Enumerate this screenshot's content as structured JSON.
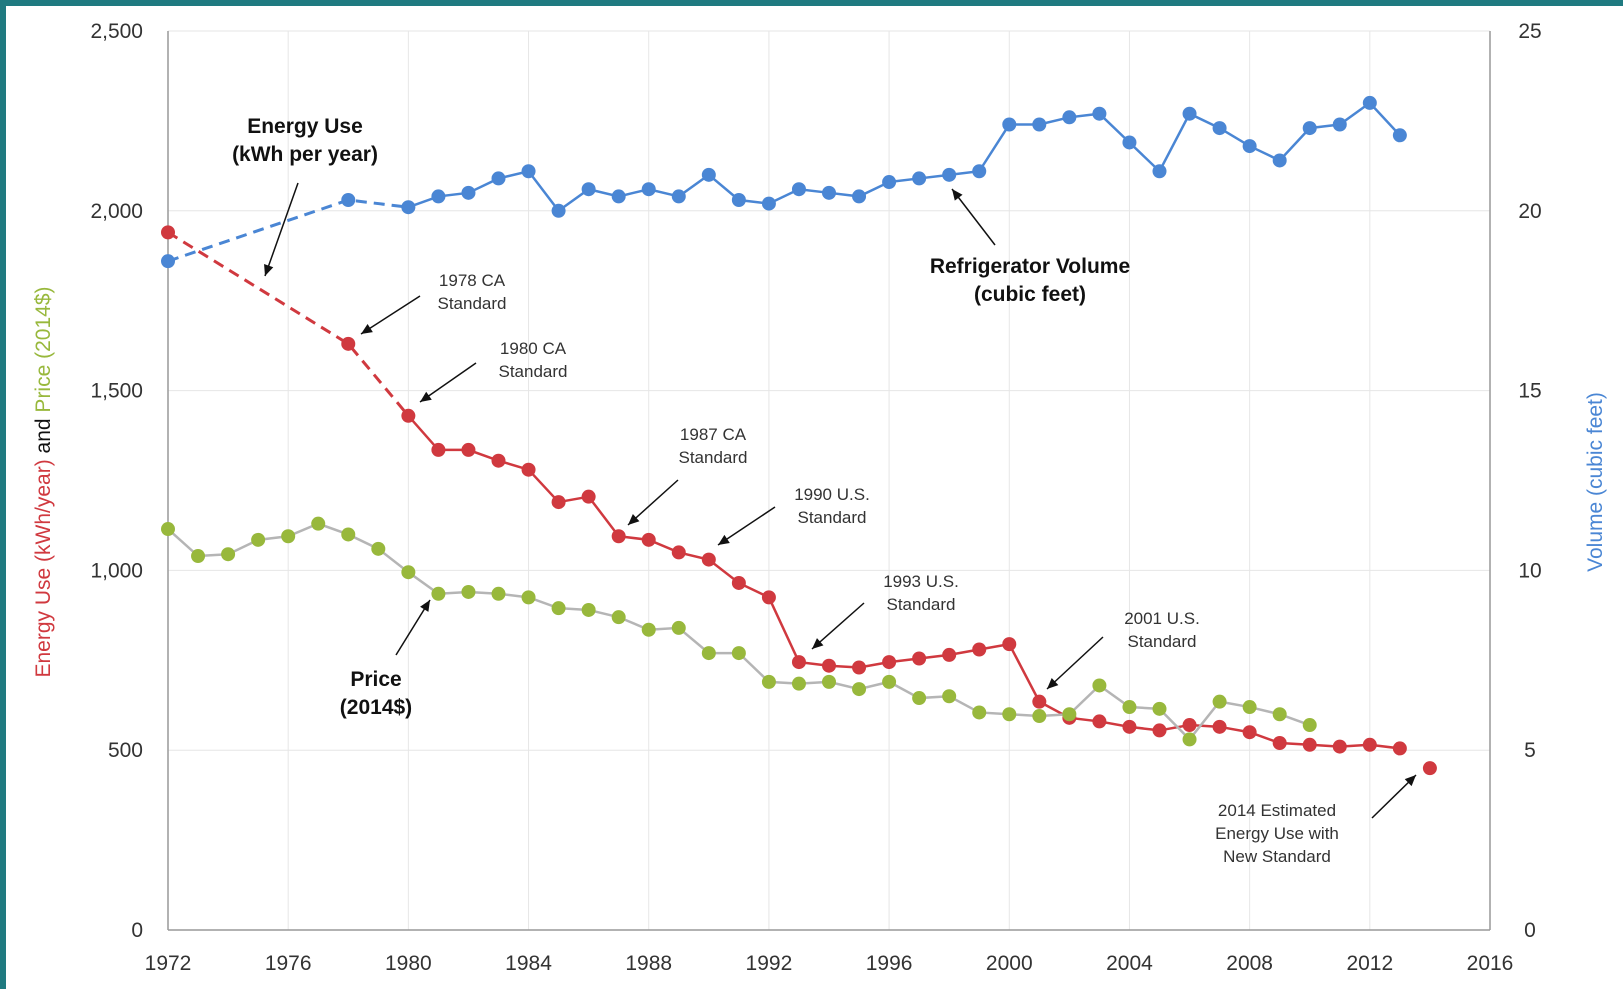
{
  "theme": {
    "frame_color": "#1f7a80",
    "energy_color": "#d0393f",
    "price_color": "#98b83c",
    "volume_color": "#4a86d4",
    "price_line_color": "#b5b5b5",
    "grid_color": "#e6e6e6"
  },
  "chart_data": {
    "type": "line",
    "x_axis": {
      "min": 1972,
      "max": 2016,
      "ticks": [
        "1972",
        "1976",
        "1980",
        "1984",
        "1988",
        "1992",
        "1996",
        "2000",
        "2004",
        "2008",
        "2012",
        "2016"
      ]
    },
    "y_left": {
      "min": 0,
      "max": 2500,
      "ticks": [
        "0",
        "500",
        "1,000",
        "1,500",
        "2,000",
        "2,500"
      ],
      "label_parts": [
        "Energy Use (kWh/year)",
        " and ",
        "Price (2014$)"
      ]
    },
    "y_right": {
      "min": 0,
      "max": 25,
      "ticks": [
        "0",
        "5",
        "10",
        "15",
        "20",
        "25"
      ],
      "label": "Volume (cubic feet)"
    },
    "grid": true,
    "series": [
      {
        "key": "energy",
        "dashed_until": 1980,
        "points": [
          [
            1972,
            1940
          ],
          [
            1978,
            1630
          ],
          [
            1980,
            1430
          ],
          [
            1981,
            1335
          ],
          [
            1982,
            1335
          ],
          [
            1983,
            1305
          ],
          [
            1984,
            1280
          ],
          [
            1985,
            1190
          ],
          [
            1986,
            1205
          ],
          [
            1987,
            1095
          ],
          [
            1988,
            1085
          ],
          [
            1989,
            1050
          ],
          [
            1990,
            1030
          ],
          [
            1991,
            965
          ],
          [
            1992,
            925
          ],
          [
            1993,
            745
          ],
          [
            1994,
            735
          ],
          [
            1995,
            730
          ],
          [
            1996,
            745
          ],
          [
            1997,
            755
          ],
          [
            1998,
            765
          ],
          [
            1999,
            780
          ],
          [
            2000,
            795
          ],
          [
            2001,
            635
          ],
          [
            2002,
            590
          ],
          [
            2003,
            580
          ],
          [
            2004,
            565
          ],
          [
            2005,
            555
          ],
          [
            2006,
            570
          ],
          [
            2007,
            565
          ],
          [
            2008,
            550
          ],
          [
            2009,
            520
          ],
          [
            2010,
            515
          ],
          [
            2011,
            510
          ],
          [
            2012,
            515
          ],
          [
            2013,
            505
          ]
        ]
      },
      {
        "key": "price",
        "points": [
          [
            1972,
            1115
          ],
          [
            1973,
            1040
          ],
          [
            1974,
            1045
          ],
          [
            1975,
            1085
          ],
          [
            1976,
            1095
          ],
          [
            1977,
            1130
          ],
          [
            1978,
            1100
          ],
          [
            1979,
            1060
          ],
          [
            1980,
            995
          ],
          [
            1981,
            935
          ],
          [
            1982,
            940
          ],
          [
            1983,
            935
          ],
          [
            1984,
            925
          ],
          [
            1985,
            895
          ],
          [
            1986,
            890
          ],
          [
            1987,
            870
          ],
          [
            1988,
            835
          ],
          [
            1989,
            840
          ],
          [
            1990,
            770
          ],
          [
            1991,
            770
          ],
          [
            1992,
            690
          ],
          [
            1993,
            685
          ],
          [
            1994,
            690
          ],
          [
            1995,
            670
          ],
          [
            1996,
            690
          ],
          [
            1997,
            645
          ],
          [
            1998,
            650
          ],
          [
            1999,
            605
          ],
          [
            2000,
            600
          ],
          [
            2001,
            595
          ],
          [
            2002,
            600
          ],
          [
            2003,
            680
          ],
          [
            2004,
            620
          ],
          [
            2005,
            615
          ],
          [
            2006,
            530
          ],
          [
            2007,
            635
          ],
          [
            2008,
            620
          ],
          [
            2009,
            600
          ],
          [
            2010,
            570
          ]
        ]
      },
      {
        "key": "volume",
        "dashed_until": 1980,
        "points": [
          [
            1972,
            18.6
          ],
          [
            1978,
            20.3
          ],
          [
            1980,
            20.1
          ],
          [
            1981,
            20.4
          ],
          [
            1982,
            20.5
          ],
          [
            1983,
            20.9
          ],
          [
            1984,
            21.1
          ],
          [
            1985,
            20.0
          ],
          [
            1986,
            20.6
          ],
          [
            1987,
            20.4
          ],
          [
            1988,
            20.6
          ],
          [
            1989,
            20.4
          ],
          [
            1990,
            21.0
          ],
          [
            1991,
            20.3
          ],
          [
            1992,
            20.2
          ],
          [
            1993,
            20.6
          ],
          [
            1994,
            20.5
          ],
          [
            1995,
            20.4
          ],
          [
            1996,
            20.8
          ],
          [
            1997,
            20.9
          ],
          [
            1998,
            21.0
          ],
          [
            1999,
            21.1
          ],
          [
            2000,
            22.4
          ],
          [
            2001,
            22.4
          ],
          [
            2002,
            22.6
          ],
          [
            2003,
            22.7
          ],
          [
            2004,
            21.9
          ],
          [
            2005,
            21.1
          ],
          [
            2006,
            22.7
          ],
          [
            2007,
            22.3
          ],
          [
            2008,
            21.8
          ],
          [
            2009,
            21.4
          ],
          [
            2010,
            22.3
          ],
          [
            2011,
            22.4
          ],
          [
            2012,
            23.0
          ],
          [
            2013,
            22.1
          ]
        ]
      },
      {
        "key": "estimate",
        "points": [
          [
            2014,
            450
          ]
        ]
      }
    ],
    "annotations": [
      {
        "id": "energy-use",
        "lines": [
          "Energy Use",
          "(kWh per year)"
        ],
        "bold": true
      },
      {
        "id": "ca-1978",
        "lines": [
          "1978 CA",
          "Standard"
        ],
        "bold": false
      },
      {
        "id": "ca-1980",
        "lines": [
          "1980 CA",
          "Standard"
        ],
        "bold": false
      },
      {
        "id": "ca-1987",
        "lines": [
          "1987 CA",
          "Standard"
        ],
        "bold": false
      },
      {
        "id": "us-1990",
        "lines": [
          "1990 U.S.",
          "Standard"
        ],
        "bold": false
      },
      {
        "id": "us-1993",
        "lines": [
          "1993 U.S.",
          "Standard"
        ],
        "bold": false
      },
      {
        "id": "us-2001",
        "lines": [
          "2001 U.S.",
          "Standard"
        ],
        "bold": false
      },
      {
        "id": "volume",
        "lines": [
          "Refrigerator Volume",
          "(cubic feet)"
        ],
        "bold": true
      },
      {
        "id": "price",
        "lines": [
          "Price",
          "(2014$)"
        ],
        "bold": true
      },
      {
        "id": "estimate-2014",
        "lines": [
          "2014 Estimated",
          "Energy Use with",
          "New Standard"
        ],
        "bold": false
      }
    ]
  }
}
